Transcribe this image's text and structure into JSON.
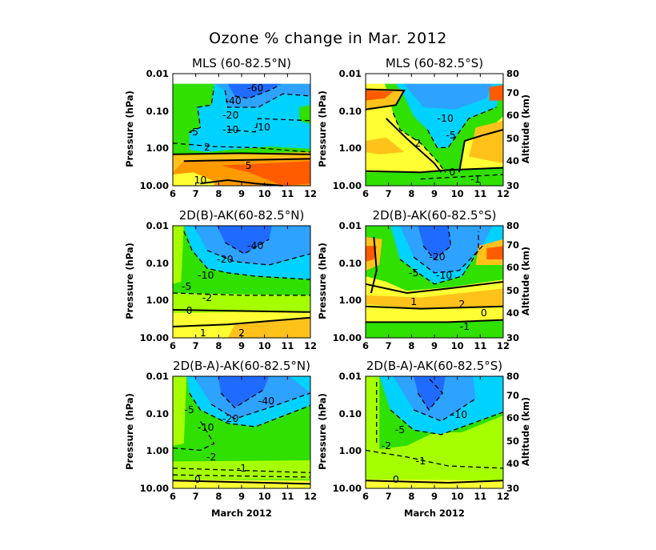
{
  "chart_data": {
    "type": "heatmap",
    "subtype": "filled contour",
    "title": "Ozone % change in Mar. 2012",
    "xlabel": "March 2012",
    "ylabel_left": "Pressure (hPa)",
    "ylabel_right": "Altitude (km)",
    "x_ticks": [
      "6",
      "7",
      "8",
      "9",
      "10",
      "11",
      "12"
    ],
    "xlim": [
      6,
      12
    ],
    "y_ticks": [
      "0.01",
      "0.10",
      "1.00",
      "10.00"
    ],
    "ylim": [
      10.0,
      0.01
    ],
    "y_scale": "log",
    "right_ticks": [
      "80",
      "70",
      "60",
      "50",
      "40",
      "30"
    ],
    "colors": {
      "dark_blue": "#1f6bff",
      "blue": "#2ea2ff",
      "light_blue": "#00d2ff",
      "green": "#2fe000",
      "yellow_green": "#a6ff00",
      "yellow": "#ffff33",
      "light_orange": "#ffc21a",
      "orange": "#ff9a00",
      "dark_orange": "#ff5c00",
      "contour_line": "#000000"
    },
    "panels": [
      {
        "title": "MLS (60-82.5°N)",
        "contour_labels": [
          "-60",
          "-40",
          "-20",
          "-10",
          "-5",
          "-10",
          "2",
          "5",
          "10"
        ]
      },
      {
        "title": "MLS (60-82.5°S)",
        "contour_labels": [
          "-10",
          "-5",
          "2",
          "0",
          "-1"
        ]
      },
      {
        "title": "2D(B)-AK(60-82.5°N)",
        "contour_labels": [
          "-40",
          "-20",
          "-10",
          "-5",
          "-2",
          "0",
          "1",
          "2"
        ]
      },
      {
        "title": "2D(B)-AK(60-82.5°S)",
        "contour_labels": [
          "-20",
          "-10",
          "-5",
          "1",
          "2",
          "0",
          "-1"
        ]
      },
      {
        "title": "2D(B-A)-AK(60-82.5°N)",
        "contour_labels": [
          "-40",
          "-20",
          "-10",
          "-5",
          "-2",
          "-1",
          "0"
        ]
      },
      {
        "title": "2D(B-A)-AK(60-82.5°S)",
        "contour_labels": [
          "-10",
          "-5",
          "-2",
          "-1",
          "0"
        ]
      }
    ]
  }
}
